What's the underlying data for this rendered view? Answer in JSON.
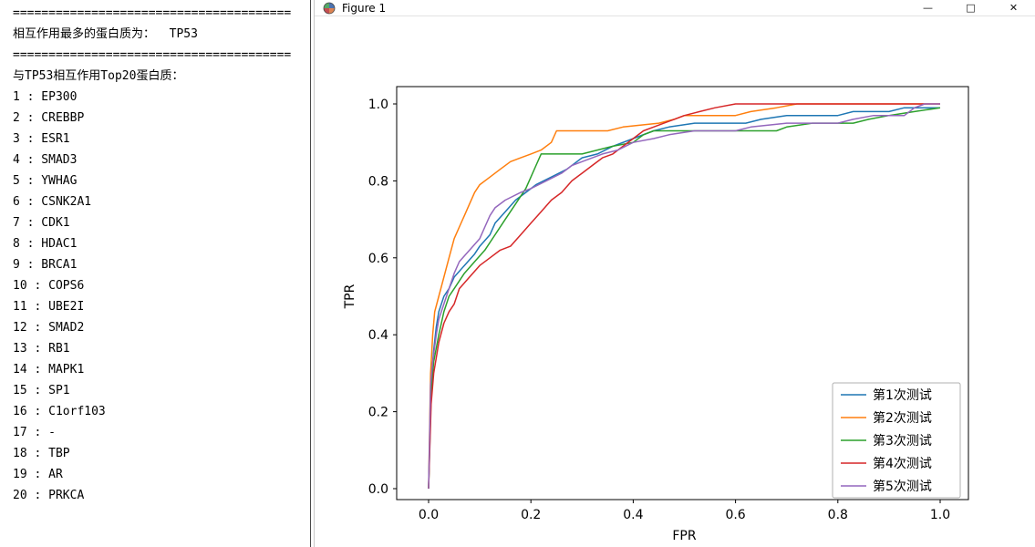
{
  "console": {
    "separator": "=======================================",
    "max_protein_line": "相互作用最多的蛋白质为：  TP53",
    "top20_header": "与TP53相互作用Top20蛋白质：",
    "proteins": [
      "EP300",
      "CREBBP",
      "ESR1",
      "SMAD3",
      "YWHAG",
      "CSNK2A1",
      "CDK1",
      "HDAC1",
      "BRCA1",
      "COPS6",
      "UBE2I",
      "SMAD2",
      "RB1",
      "MAPK1",
      "SP1",
      "C1orf103",
      "-",
      "TBP",
      "AR",
      "PRKCA"
    ]
  },
  "window": {
    "title": "Figure 1",
    "controls": {
      "minimize": "—",
      "maximize": "□",
      "close": "✕"
    }
  },
  "chart_data": {
    "type": "line",
    "title": "",
    "xlabel": "FPR",
    "ylabel": "TPR",
    "xlim": [
      -0.05,
      1.05
    ],
    "ylim": [
      -0.05,
      1.05
    ],
    "xticks": [
      0.0,
      0.2,
      0.4,
      0.6,
      0.8,
      1.0
    ],
    "yticks": [
      0.0,
      0.2,
      0.4,
      0.6,
      0.8,
      1.0
    ],
    "grid": false,
    "legend_position": "lower right",
    "series": [
      {
        "name": "第1次测试",
        "color": "#1f77b4",
        "points": [
          [
            0,
            0
          ],
          [
            0.005,
            0.28
          ],
          [
            0.01,
            0.36
          ],
          [
            0.015,
            0.42
          ],
          [
            0.02,
            0.46
          ],
          [
            0.03,
            0.5
          ],
          [
            0.04,
            0.52
          ],
          [
            0.05,
            0.55
          ],
          [
            0.07,
            0.58
          ],
          [
            0.09,
            0.61
          ],
          [
            0.1,
            0.63
          ],
          [
            0.12,
            0.66
          ],
          [
            0.13,
            0.69
          ],
          [
            0.15,
            0.72
          ],
          [
            0.17,
            0.75
          ],
          [
            0.19,
            0.77
          ],
          [
            0.21,
            0.79
          ],
          [
            0.24,
            0.81
          ],
          [
            0.27,
            0.83
          ],
          [
            0.3,
            0.86
          ],
          [
            0.33,
            0.87
          ],
          [
            0.36,
            0.89
          ],
          [
            0.4,
            0.91
          ],
          [
            0.44,
            0.93
          ],
          [
            0.47,
            0.94
          ],
          [
            0.52,
            0.95
          ],
          [
            0.62,
            0.95
          ],
          [
            0.65,
            0.96
          ],
          [
            0.7,
            0.97
          ],
          [
            0.8,
            0.97
          ],
          [
            0.83,
            0.98
          ],
          [
            0.9,
            0.98
          ],
          [
            0.93,
            0.99
          ],
          [
            1.0,
            0.99
          ]
        ]
      },
      {
        "name": "第2次测试",
        "color": "#ff7f0e",
        "points": [
          [
            0,
            0
          ],
          [
            0.004,
            0.3
          ],
          [
            0.008,
            0.4
          ],
          [
            0.012,
            0.46
          ],
          [
            0.02,
            0.5
          ],
          [
            0.03,
            0.55
          ],
          [
            0.04,
            0.6
          ],
          [
            0.05,
            0.65
          ],
          [
            0.06,
            0.68
          ],
          [
            0.07,
            0.71
          ],
          [
            0.08,
            0.74
          ],
          [
            0.09,
            0.77
          ],
          [
            0.1,
            0.79
          ],
          [
            0.12,
            0.81
          ],
          [
            0.14,
            0.83
          ],
          [
            0.16,
            0.85
          ],
          [
            0.18,
            0.86
          ],
          [
            0.2,
            0.87
          ],
          [
            0.22,
            0.88
          ],
          [
            0.24,
            0.9
          ],
          [
            0.25,
            0.93
          ],
          [
            0.35,
            0.93
          ],
          [
            0.38,
            0.94
          ],
          [
            0.45,
            0.95
          ],
          [
            0.48,
            0.96
          ],
          [
            0.5,
            0.97
          ],
          [
            0.6,
            0.97
          ],
          [
            0.63,
            0.98
          ],
          [
            0.68,
            0.99
          ],
          [
            0.72,
            1.0
          ],
          [
            1.0,
            1.0
          ]
        ]
      },
      {
        "name": "第3次测试",
        "color": "#2ca02c",
        "points": [
          [
            0,
            0
          ],
          [
            0.005,
            0.25
          ],
          [
            0.01,
            0.33
          ],
          [
            0.02,
            0.4
          ],
          [
            0.03,
            0.46
          ],
          [
            0.04,
            0.5
          ],
          [
            0.05,
            0.52
          ],
          [
            0.07,
            0.56
          ],
          [
            0.09,
            0.59
          ],
          [
            0.11,
            0.62
          ],
          [
            0.13,
            0.66
          ],
          [
            0.15,
            0.7
          ],
          [
            0.17,
            0.74
          ],
          [
            0.19,
            0.78
          ],
          [
            0.2,
            0.81
          ],
          [
            0.21,
            0.84
          ],
          [
            0.22,
            0.87
          ],
          [
            0.3,
            0.87
          ],
          [
            0.33,
            0.88
          ],
          [
            0.36,
            0.89
          ],
          [
            0.4,
            0.9
          ],
          [
            0.42,
            0.92
          ],
          [
            0.44,
            0.93
          ],
          [
            0.68,
            0.93
          ],
          [
            0.7,
            0.94
          ],
          [
            0.75,
            0.95
          ],
          [
            0.83,
            0.95
          ],
          [
            0.86,
            0.96
          ],
          [
            0.9,
            0.97
          ],
          [
            0.95,
            0.98
          ],
          [
            1.0,
            0.99
          ]
        ]
      },
      {
        "name": "第4次测试",
        "color": "#d62728",
        "points": [
          [
            0,
            0
          ],
          [
            0.005,
            0.22
          ],
          [
            0.01,
            0.3
          ],
          [
            0.02,
            0.38
          ],
          [
            0.03,
            0.43
          ],
          [
            0.04,
            0.46
          ],
          [
            0.05,
            0.48
          ],
          [
            0.06,
            0.52
          ],
          [
            0.08,
            0.55
          ],
          [
            0.1,
            0.58
          ],
          [
            0.12,
            0.6
          ],
          [
            0.14,
            0.62
          ],
          [
            0.16,
            0.63
          ],
          [
            0.18,
            0.66
          ],
          [
            0.2,
            0.69
          ],
          [
            0.22,
            0.72
          ],
          [
            0.24,
            0.75
          ],
          [
            0.26,
            0.77
          ],
          [
            0.28,
            0.8
          ],
          [
            0.3,
            0.82
          ],
          [
            0.32,
            0.84
          ],
          [
            0.34,
            0.86
          ],
          [
            0.36,
            0.87
          ],
          [
            0.38,
            0.89
          ],
          [
            0.4,
            0.91
          ],
          [
            0.42,
            0.93
          ],
          [
            0.44,
            0.94
          ],
          [
            0.46,
            0.95
          ],
          [
            0.48,
            0.96
          ],
          [
            0.5,
            0.97
          ],
          [
            0.53,
            0.98
          ],
          [
            0.56,
            0.99
          ],
          [
            0.6,
            1.0
          ],
          [
            1.0,
            1.0
          ]
        ]
      },
      {
        "name": "第5次测试",
        "color": "#9467bd",
        "points": [
          [
            0,
            0
          ],
          [
            0.004,
            0.27
          ],
          [
            0.008,
            0.33
          ],
          [
            0.015,
            0.4
          ],
          [
            0.02,
            0.44
          ],
          [
            0.03,
            0.48
          ],
          [
            0.04,
            0.52
          ],
          [
            0.05,
            0.56
          ],
          [
            0.06,
            0.59
          ],
          [
            0.08,
            0.62
          ],
          [
            0.1,
            0.65
          ],
          [
            0.11,
            0.68
          ],
          [
            0.12,
            0.71
          ],
          [
            0.13,
            0.73
          ],
          [
            0.15,
            0.75
          ],
          [
            0.18,
            0.77
          ],
          [
            0.2,
            0.78
          ],
          [
            0.23,
            0.8
          ],
          [
            0.26,
            0.82
          ],
          [
            0.28,
            0.84
          ],
          [
            0.3,
            0.85
          ],
          [
            0.34,
            0.87
          ],
          [
            0.37,
            0.88
          ],
          [
            0.4,
            0.9
          ],
          [
            0.44,
            0.91
          ],
          [
            0.47,
            0.92
          ],
          [
            0.52,
            0.93
          ],
          [
            0.6,
            0.93
          ],
          [
            0.63,
            0.94
          ],
          [
            0.7,
            0.95
          ],
          [
            0.8,
            0.95
          ],
          [
            0.83,
            0.96
          ],
          [
            0.87,
            0.97
          ],
          [
            0.93,
            0.97
          ],
          [
            0.95,
            0.99
          ],
          [
            0.97,
            1.0
          ],
          [
            1.0,
            1.0
          ]
        ]
      }
    ]
  }
}
